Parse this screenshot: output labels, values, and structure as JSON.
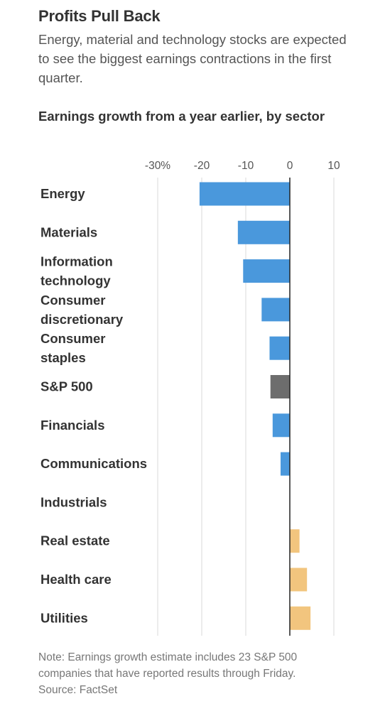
{
  "header": {
    "title": "Profits Pull Back",
    "subtitle": "Energy, material and technology stocks are expected to see the biggest earnings contractions in the first quarter.",
    "chart_title": "Earnings growth from a year earlier, by sector"
  },
  "footer": {
    "note_line1": "Note: Earnings growth estimate includes 23 S&P 500",
    "note_line2": "companies that have reported results through Friday.",
    "source": "Source: FactSet"
  },
  "colors": {
    "negative": "#4a98dc",
    "positive": "#f2c57e",
    "index": "#6d6d6d",
    "gridline": "#d9d9d9",
    "zero_line": "#222222"
  },
  "chart_data": {
    "type": "bar",
    "orientation": "horizontal",
    "title": "Earnings growth from a year earlier, by sector",
    "xlim": [
      -30,
      10
    ],
    "ticks": [
      -30,
      -20,
      -10,
      0,
      10
    ],
    "tick_labels": [
      "-30%",
      "-20",
      "-10",
      "0",
      "10"
    ],
    "grid": true,
    "categories": [
      [
        "Energy"
      ],
      [
        "Materials"
      ],
      [
        "Information",
        "technology"
      ],
      [
        "Consumer",
        "discretionary"
      ],
      [
        "Consumer",
        "staples"
      ],
      [
        "S&P 500"
      ],
      [
        "Financials"
      ],
      [
        "Communications"
      ],
      [
        "Industrials"
      ],
      [
        "Real estate"
      ],
      [
        "Health care"
      ],
      [
        "Utilities"
      ]
    ],
    "values": [
      -20.5,
      -11.8,
      -10.6,
      -6.4,
      -4.6,
      -4.4,
      -3.9,
      -2.1,
      0.0,
      2.2,
      3.9,
      4.7
    ],
    "highlight": "S&P 500"
  }
}
